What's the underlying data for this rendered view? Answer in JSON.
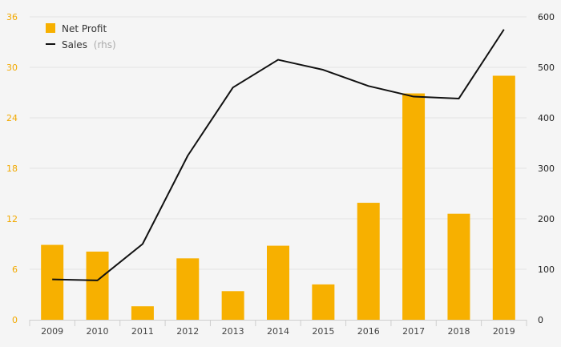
{
  "chart_data": {
    "type": "bar",
    "categories": [
      "2009",
      "2010",
      "2011",
      "2012",
      "2013",
      "2014",
      "2015",
      "2016",
      "2017",
      "2018",
      "2019"
    ],
    "series": [
      {
        "name": "Net Profit",
        "type": "bar",
        "axis": "left",
        "color": "#f7b000",
        "values": [
          8.9,
          8.1,
          1.6,
          7.3,
          3.4,
          8.8,
          4.2,
          13.9,
          26.9,
          12.6,
          29.0
        ]
      },
      {
        "name": "Sales",
        "type": "line",
        "axis": "right",
        "color": "#111111",
        "values": [
          80,
          78,
          150,
          325,
          460,
          515,
          495,
          463,
          442,
          438,
          575
        ]
      }
    ],
    "legend": {
      "items": [
        {
          "label": "Net Profit"
        },
        {
          "label": "Sales",
          "note": "(rhs)"
        }
      ],
      "position": "top-left"
    },
    "ylim_left": [
      0,
      36
    ],
    "yticks_left": [
      "0",
      "6",
      "12",
      "18",
      "24",
      "30",
      "36"
    ],
    "ylim_right": [
      0,
      600
    ],
    "yticks_right": [
      "0",
      "100",
      "200",
      "300",
      "400",
      "500",
      "600"
    ],
    "grid": true,
    "colors": {
      "left_ticks": "#f2a900",
      "grid": "#e3e3e3"
    }
  }
}
